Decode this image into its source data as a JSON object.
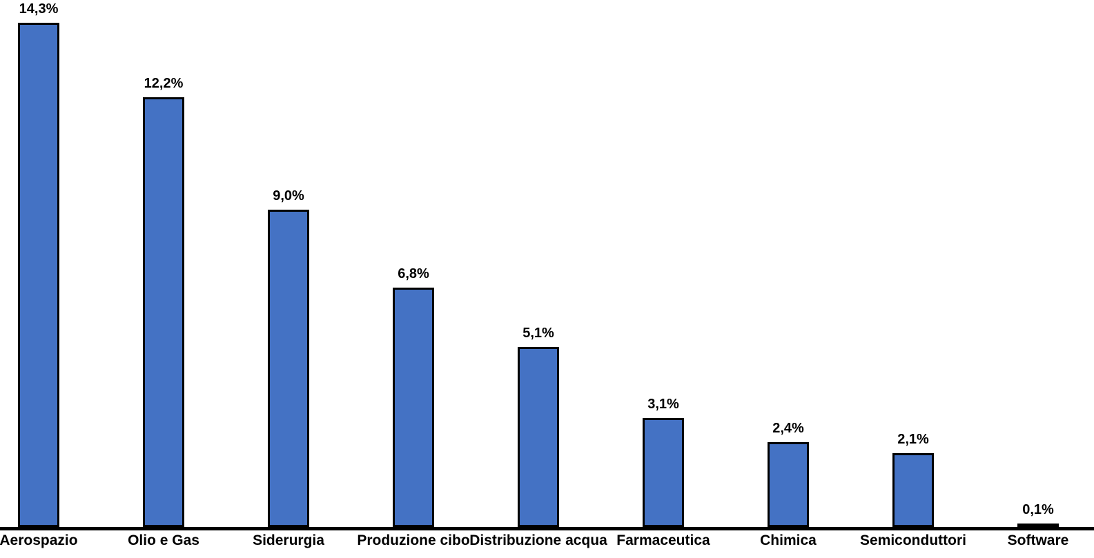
{
  "chart_data": {
    "type": "bar",
    "categories": [
      "Aerospazio",
      "Olio e Gas",
      "Siderurgia",
      "Produzione cibo",
      "Distribuzione acqua",
      "Farmaceutica",
      "Chimica",
      "Semiconduttori",
      "Software"
    ],
    "values": [
      14.3,
      12.2,
      9.0,
      6.8,
      5.1,
      3.1,
      2.4,
      2.1,
      0.1
    ],
    "value_labels": [
      "14,3%",
      "12,2%",
      "9,0%",
      "6,8%",
      "5,1%",
      "3,1%",
      "2,4%",
      "2,1%",
      "0,1%"
    ],
    "title": "",
    "xlabel": "",
    "ylabel": "",
    "ylim": [
      0,
      14.3
    ],
    "grid": false,
    "legend": false,
    "bar_color": "#4472C4",
    "bar_border_color": "#000000",
    "axis_color": "#000000",
    "label_color": "#000000",
    "background": "#FFFFFF"
  }
}
